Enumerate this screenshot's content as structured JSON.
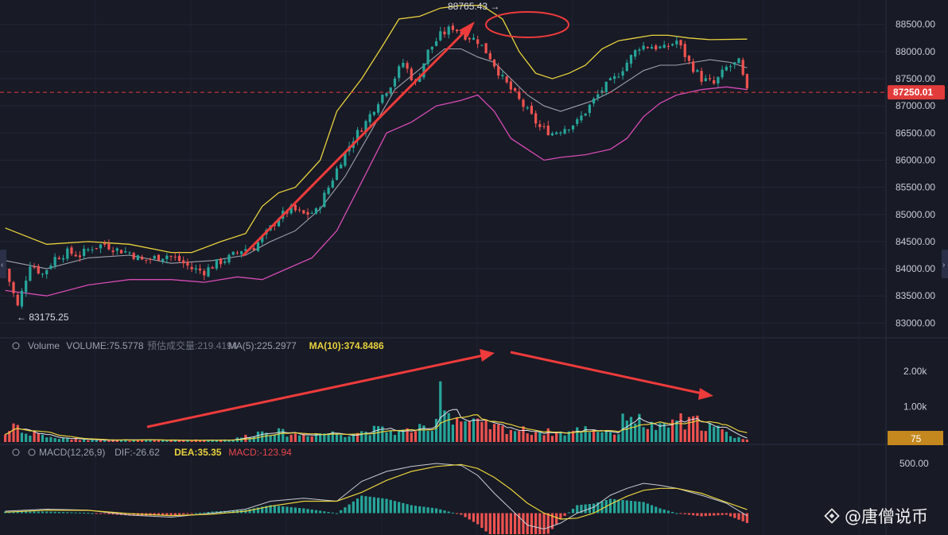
{
  "chart_data": [
    {
      "type": "candlestick",
      "name": "price",
      "y_ticks": [
        83000,
        83500,
        84000,
        84500,
        85000,
        85500,
        86000,
        86500,
        87000,
        87500,
        88000,
        88500
      ],
      "y_tick_labels": [
        "83000.00",
        "83500.00",
        "84000.00",
        "84500.00",
        "85000.00",
        "85500.00",
        "86000.00",
        "86500.00",
        "87000.00",
        "87500.00",
        "88000.00",
        "88500.00"
      ],
      "ylim": [
        82800,
        88950
      ],
      "current_price": 87250.01,
      "current_price_label": "87250.01",
      "high_label": "88765.43",
      "low_label": "83175.25",
      "close_path": [
        [
          0,
          84000
        ],
        [
          3,
          83300
        ],
        [
          6,
          84100
        ],
        [
          9,
          83900
        ],
        [
          12,
          84200
        ],
        [
          15,
          84300
        ],
        [
          18,
          84250
        ],
        [
          21,
          84400
        ],
        [
          24,
          84450
        ],
        [
          27,
          84350
        ],
        [
          30,
          84300
        ],
        [
          33,
          84150
        ],
        [
          36,
          84200
        ],
        [
          39,
          84250
        ],
        [
          42,
          84150
        ],
        [
          45,
          84000
        ],
        [
          48,
          83950
        ],
        [
          51,
          84100
        ],
        [
          54,
          84200
        ],
        [
          57,
          84350
        ],
        [
          60,
          84400
        ],
        [
          63,
          84650
        ],
        [
          66,
          84950
        ],
        [
          69,
          85100
        ],
        [
          72,
          85000
        ],
        [
          75,
          85050
        ],
        [
          78,
          85500
        ],
        [
          81,
          86000
        ],
        [
          84,
          86400
        ],
        [
          87,
          86700
        ],
        [
          90,
          87100
        ],
        [
          93,
          87400
        ],
        [
          96,
          87800
        ],
        [
          99,
          87400
        ],
        [
          102,
          88000
        ],
        [
          105,
          88300
        ],
        [
          108,
          88450
        ],
        [
          111,
          88300
        ],
        [
          114,
          88200
        ],
        [
          117,
          87900
        ],
        [
          120,
          87500
        ],
        [
          123,
          87200
        ],
        [
          126,
          86900
        ],
        [
          129,
          86600
        ],
        [
          132,
          86500
        ],
        [
          135,
          86600
        ],
        [
          138,
          86700
        ],
        [
          141,
          87000
        ],
        [
          144,
          87300
        ],
        [
          147,
          87500
        ],
        [
          150,
          87800
        ],
        [
          153,
          88100
        ],
        [
          156,
          88100
        ],
        [
          159,
          88050
        ],
        [
          162,
          88200
        ],
        [
          165,
          87800
        ],
        [
          168,
          87500
        ],
        [
          171,
          87400
        ],
        [
          174,
          87700
        ],
        [
          177,
          87800
        ],
        [
          179,
          87250
        ]
      ],
      "upper_band": [
        [
          0,
          84750
        ],
        [
          10,
          84450
        ],
        [
          20,
          84500
        ],
        [
          30,
          84450
        ],
        [
          40,
          84300
        ],
        [
          45,
          84300
        ],
        [
          52,
          84500
        ],
        [
          58,
          84650
        ],
        [
          62,
          85150
        ],
        [
          66,
          85400
        ],
        [
          70,
          85500
        ],
        [
          76,
          86000
        ],
        [
          80,
          86900
        ],
        [
          86,
          87500
        ],
        [
          91,
          88100
        ],
        [
          95,
          88600
        ],
        [
          100,
          88650
        ],
        [
          105,
          88800
        ],
        [
          110,
          88850
        ],
        [
          115,
          88850
        ],
        [
          120,
          88600
        ],
        [
          124,
          88000
        ],
        [
          128,
          87600
        ],
        [
          132,
          87500
        ],
        [
          136,
          87600
        ],
        [
          140,
          87750
        ],
        [
          144,
          88050
        ],
        [
          148,
          88200
        ],
        [
          152,
          88250
        ],
        [
          156,
          88300
        ],
        [
          160,
          88300
        ],
        [
          165,
          88250
        ],
        [
          170,
          88220
        ],
        [
          179,
          88230
        ]
      ],
      "middle_band": [
        [
          0,
          84150
        ],
        [
          10,
          84000
        ],
        [
          20,
          84200
        ],
        [
          30,
          84250
        ],
        [
          40,
          84100
        ],
        [
          50,
          84150
        ],
        [
          58,
          84250
        ],
        [
          64,
          84500
        ],
        [
          70,
          84700
        ],
        [
          76,
          85100
        ],
        [
          82,
          85700
        ],
        [
          88,
          86500
        ],
        [
          94,
          87300
        ],
        [
          98,
          87550
        ],
        [
          102,
          87800
        ],
        [
          106,
          88050
        ],
        [
          110,
          88050
        ],
        [
          114,
          87900
        ],
        [
          118,
          87800
        ],
        [
          122,
          87500
        ],
        [
          126,
          87200
        ],
        [
          130,
          87000
        ],
        [
          134,
          86900
        ],
        [
          138,
          87000
        ],
        [
          142,
          87100
        ],
        [
          146,
          87250
        ],
        [
          150,
          87450
        ],
        [
          154,
          87650
        ],
        [
          158,
          87750
        ],
        [
          162,
          87750
        ],
        [
          166,
          87800
        ],
        [
          170,
          87850
        ],
        [
          175,
          87800
        ],
        [
          179,
          87700
        ]
      ],
      "lower_band": [
        [
          0,
          83600
        ],
        [
          10,
          83500
        ],
        [
          20,
          83700
        ],
        [
          30,
          83800
        ],
        [
          40,
          83800
        ],
        [
          48,
          83750
        ],
        [
          56,
          83850
        ],
        [
          62,
          83800
        ],
        [
          68,
          84000
        ],
        [
          74,
          84200
        ],
        [
          80,
          84700
        ],
        [
          86,
          85600
        ],
        [
          92,
          86500
        ],
        [
          98,
          86700
        ],
        [
          104,
          87000
        ],
        [
          110,
          87100
        ],
        [
          114,
          87200
        ],
        [
          118,
          86900
        ],
        [
          122,
          86400
        ],
        [
          126,
          86200
        ],
        [
          130,
          86000
        ],
        [
          134,
          86050
        ],
        [
          140,
          86100
        ],
        [
          146,
          86200
        ],
        [
          150,
          86400
        ],
        [
          154,
          86800
        ],
        [
          158,
          87050
        ],
        [
          162,
          87200
        ],
        [
          168,
          87300
        ],
        [
          174,
          87350
        ],
        [
          179,
          87300
        ]
      ]
    },
    {
      "type": "volume",
      "title": "Volume",
      "legend_items": [
        {
          "label": "Volume",
          "color": "#9aa0ae"
        },
        {
          "label": "VOLUME:75.5778",
          "color": "#9aa0ae"
        },
        {
          "label": "预估成交量:219.4194",
          "color": "#6c7180"
        },
        {
          "label": "MA(5):225.2977",
          "color": "#9aa0ae"
        },
        {
          "label": "MA(10):374.8486",
          "color": "#e8d23c"
        }
      ],
      "y_tick_labels": [
        "1.00k",
        "2.00k"
      ],
      "y_ticks": [
        1000,
        2000
      ],
      "ylim": [
        0,
        2450
      ],
      "current_label": "75",
      "spikes": [
        [
          0,
          300
        ],
        [
          1,
          450
        ],
        [
          2,
          700
        ],
        [
          3,
          650
        ],
        [
          4,
          500
        ],
        [
          5,
          300
        ],
        [
          6,
          250
        ],
        [
          8,
          420
        ],
        [
          10,
          180
        ],
        [
          15,
          120
        ],
        [
          25,
          80
        ],
        [
          40,
          60
        ],
        [
          55,
          90
        ],
        [
          63,
          450
        ],
        [
          70,
          280
        ],
        [
          78,
          350
        ],
        [
          82,
          300
        ],
        [
          90,
          470
        ],
        [
          95,
          380
        ],
        [
          100,
          500
        ],
        [
          103,
          350
        ],
        [
          105,
          2400
        ],
        [
          106,
          1500
        ],
        [
          107,
          1100
        ],
        [
          109,
          900
        ],
        [
          112,
          700
        ],
        [
          115,
          650
        ],
        [
          118,
          550
        ],
        [
          122,
          480
        ],
        [
          126,
          420
        ],
        [
          130,
          380
        ],
        [
          135,
          350
        ],
        [
          140,
          500
        ],
        [
          143,
          450
        ],
        [
          146,
          420
        ],
        [
          148,
          300
        ],
        [
          150,
          1250
        ],
        [
          152,
          900
        ],
        [
          154,
          700
        ],
        [
          156,
          600
        ],
        [
          158,
          520
        ],
        [
          160,
          560
        ],
        [
          162,
          1000
        ],
        [
          164,
          600
        ],
        [
          166,
          800
        ],
        [
          168,
          700
        ],
        [
          170,
          600
        ],
        [
          172,
          480
        ],
        [
          174,
          320
        ],
        [
          176,
          220
        ],
        [
          179,
          75
        ]
      ]
    },
    {
      "type": "macd",
      "legend_items": [
        {
          "label": "MACD(12,26,9)",
          "color": "#9aa0ae"
        },
        {
          "label": "DIF:-26.62",
          "color": "#9aa0ae"
        },
        {
          "label": "DEA:35.35",
          "color": "#e8d23c"
        },
        {
          "label": "MACD:-123.94",
          "color": "#e8474c"
        }
      ],
      "y_tick_labels": [
        "500.00"
      ],
      "y_ticks": [
        500
      ],
      "ylim": [
        -180,
        580
      ],
      "dif_path": [
        [
          0,
          20
        ],
        [
          10,
          40
        ],
        [
          20,
          30
        ],
        [
          30,
          -20
        ],
        [
          40,
          -40
        ],
        [
          50,
          0
        ],
        [
          58,
          40
        ],
        [
          64,
          120
        ],
        [
          72,
          150
        ],
        [
          80,
          120
        ],
        [
          86,
          320
        ],
        [
          92,
          420
        ],
        [
          98,
          470
        ],
        [
          104,
          500
        ],
        [
          110,
          480
        ],
        [
          114,
          380
        ],
        [
          118,
          200
        ],
        [
          122,
          40
        ],
        [
          126,
          -120
        ],
        [
          130,
          -160
        ],
        [
          134,
          -100
        ],
        [
          138,
          0
        ],
        [
          142,
          60
        ],
        [
          146,
          180
        ],
        [
          150,
          250
        ],
        [
          154,
          300
        ],
        [
          158,
          280
        ],
        [
          162,
          250
        ],
        [
          168,
          180
        ],
        [
          174,
          100
        ],
        [
          179,
          -26.62
        ]
      ],
      "dea_path": [
        [
          0,
          10
        ],
        [
          10,
          30
        ],
        [
          20,
          28
        ],
        [
          30,
          -5
        ],
        [
          40,
          -25
        ],
        [
          50,
          -10
        ],
        [
          58,
          20
        ],
        [
          64,
          70
        ],
        [
          72,
          120
        ],
        [
          80,
          120
        ],
        [
          86,
          210
        ],
        [
          92,
          330
        ],
        [
          98,
          420
        ],
        [
          104,
          470
        ],
        [
          110,
          490
        ],
        [
          114,
          450
        ],
        [
          118,
          360
        ],
        [
          122,
          240
        ],
        [
          126,
          100
        ],
        [
          130,
          0
        ],
        [
          134,
          -60
        ],
        [
          138,
          -50
        ],
        [
          142,
          0
        ],
        [
          146,
          90
        ],
        [
          150,
          170
        ],
        [
          154,
          230
        ],
        [
          158,
          250
        ],
        [
          162,
          250
        ],
        [
          168,
          200
        ],
        [
          174,
          110
        ],
        [
          179,
          35.35
        ]
      ]
    }
  ],
  "watermark_text": "@唐僧说币",
  "colors": {
    "background": "#181a26",
    "up": "#26a69a",
    "down": "#ef5350",
    "upper_band": "#e8d23c",
    "middle_band": "#9ea2ad",
    "lower_band": "#d64bb4",
    "annotation": "#ee3b3b",
    "current_price": "#e23b3b",
    "volume_badge": "#c4881e"
  }
}
